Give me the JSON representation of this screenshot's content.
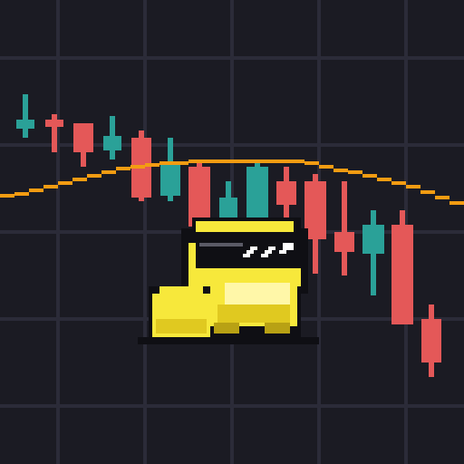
{
  "colors": {
    "background": "#1b1b23",
    "grid": "#2b2b38",
    "up": "#2aa198",
    "down": "#e45858",
    "moving_average": "#f39c12",
    "frog_body": "#f7e83b",
    "frog_shade": "#e0c920",
    "frog_dark": "#b8a114",
    "outline": "#0f0f14",
    "glasses_shine": "#ffffff",
    "glasses_gray": "#5a5a66"
  },
  "icons": {
    "mascot": "pixel-frog-with-sunglasses-icon"
  },
  "chart_data": {
    "type": "candlestick",
    "grid": true,
    "candles": [
      {
        "dir": "up"
      },
      {
        "dir": "down"
      },
      {
        "dir": "down"
      },
      {
        "dir": "up"
      },
      {
        "dir": "down"
      },
      {
        "dir": "up"
      },
      {
        "dir": "down"
      },
      {
        "dir": "up"
      },
      {
        "dir": "up"
      },
      {
        "dir": "down"
      },
      {
        "dir": "down"
      },
      {
        "dir": "down"
      },
      {
        "dir": "up"
      },
      {
        "dir": "down"
      },
      {
        "dir": "down"
      }
    ]
  }
}
